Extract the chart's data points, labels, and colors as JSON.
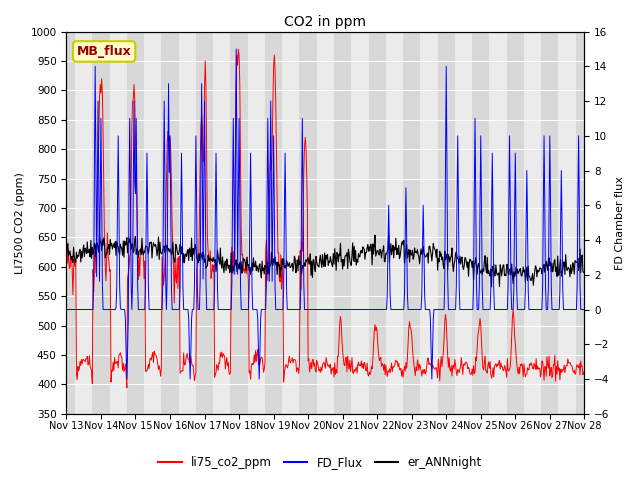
{
  "title": "CO2 in ppm",
  "ylabel_left": "LI7500 CO2 (ppm)",
  "ylabel_right": "FD Chamber flux",
  "ylim_left": [
    350,
    1000
  ],
  "ylim_right": [
    -6,
    16
  ],
  "yticks_left": [
    350,
    400,
    450,
    500,
    550,
    600,
    650,
    700,
    750,
    800,
    850,
    900,
    950,
    1000
  ],
  "yticks_right": [
    -6,
    -4,
    -2,
    0,
    2,
    4,
    6,
    8,
    10,
    12,
    14,
    16
  ],
  "xticklabels": [
    "Nov 13",
    "Nov 14",
    "Nov 15",
    "Nov 16",
    "Nov 17",
    "Nov 18",
    "Nov 19",
    "Nov 20",
    "Nov 21",
    "Nov 22",
    "Nov 23",
    "Nov 24",
    "Nov 25",
    "Nov 26",
    "Nov 27",
    "Nov 28"
  ],
  "legend_entries": [
    "li75_co2_ppm",
    "FD_Flux",
    "er_ANNnight"
  ],
  "legend_colors": [
    "red",
    "blue",
    "black"
  ],
  "annotation_text": "MB_flux",
  "annotation_color": "#990000",
  "annotation_bg": "#ffffcc",
  "annotation_edge": "#cccc00",
  "bg_dark": "#d8d8d8",
  "bg_light": "#ebebeb",
  "line_red": "red",
  "line_blue": "blue",
  "line_black": "black",
  "figsize": [
    6.4,
    4.8
  ],
  "dpi": 100
}
